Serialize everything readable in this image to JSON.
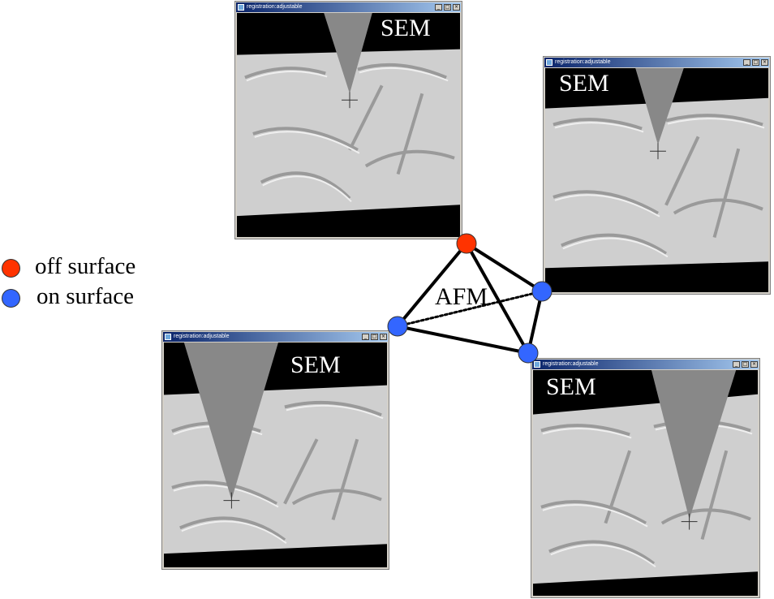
{
  "windows": [
    {
      "title": "registration:adjustable",
      "label": "SEM"
    },
    {
      "title": "registration:adjustable",
      "label": "SEM"
    },
    {
      "title": "registration:adjustable",
      "label": "SEM"
    },
    {
      "title": "registration:adjustable",
      "label": "SEM"
    }
  ],
  "window_buttons": {
    "minimize": "_",
    "maximize": "□",
    "close": "×"
  },
  "legend": [
    {
      "label": "off surface",
      "color": "#ff3300"
    },
    {
      "label": "on surface",
      "color": "#3366ff"
    }
  ],
  "center_label": "AFM",
  "colors": {
    "surface": "#cfcfcf",
    "tip": "#888888",
    "edge": "#000000"
  }
}
